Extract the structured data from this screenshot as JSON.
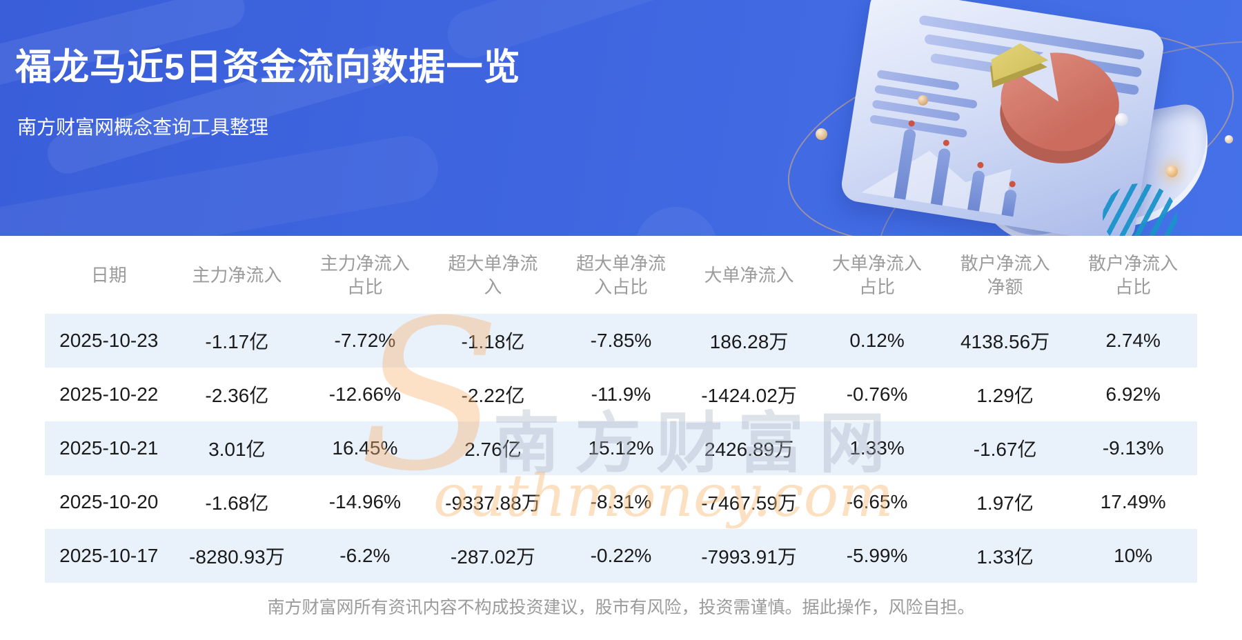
{
  "banner": {
    "title": "福龙马近5日资金流向数据一览",
    "subtitle": "南方财富网概念查询工具整理"
  },
  "watermark": {
    "initial": "S",
    "brand_cn": "南方财富网",
    "brand_en_rest": "outhmoney.com"
  },
  "footer": {
    "disclaimer": "南方财富网所有资讯内容不构成投资建议，股市有风险，投资需谨慎。据此操作，风险自担。"
  },
  "colors": {
    "banner_blue_start": "#3a5ed9",
    "banner_blue_end": "#4571e8",
    "row_alt_blue": "#e9f1fb",
    "header_text_gray": "#9b9b9b",
    "body_text": "#1a1a1a",
    "orbit_orange": "#ebb26e",
    "pie_red": "#cb6c5f",
    "pie_yellow": "#d9c964",
    "teal_accent": "#29b0e2"
  },
  "table": {
    "header_lines": [
      [
        "日期"
      ],
      [
        "主力净流入"
      ],
      [
        "主力净流入",
        "占比"
      ],
      [
        "超大单净流",
        "入"
      ],
      [
        "超大单净流",
        "入占比"
      ],
      [
        "大单净流入"
      ],
      [
        "大单净流入",
        "占比"
      ],
      [
        "散户净流入",
        "净额"
      ],
      [
        "散户净流入",
        "占比"
      ]
    ]
  },
  "chart_data": {
    "type": "table",
    "title": "福龙马近5日资金流向数据一览",
    "columns": [
      "日期",
      "主力净流入",
      "主力净流入占比",
      "超大单净流入",
      "超大单净流入占比",
      "大单净流入",
      "大单净流入占比",
      "散户净流入净额",
      "散户净流入占比"
    ],
    "rows": [
      [
        "2025-10-23",
        "-1.17亿",
        "-7.72%",
        "-1.18亿",
        "-7.85%",
        "186.28万",
        "0.12%",
        "4138.56万",
        "2.74%"
      ],
      [
        "2025-10-22",
        "-2.36亿",
        "-12.66%",
        "-2.22亿",
        "-11.9%",
        "-1424.02万",
        "-0.76%",
        "1.29亿",
        "6.92%"
      ],
      [
        "2025-10-21",
        "3.01亿",
        "16.45%",
        "2.76亿",
        "15.12%",
        "2426.89万",
        "1.33%",
        "-1.67亿",
        "-9.13%"
      ],
      [
        "2025-10-20",
        "-1.68亿",
        "-14.96%",
        "-9337.88万",
        "-8.31%",
        "-7467.59万",
        "-6.65%",
        "1.97亿",
        "17.49%"
      ],
      [
        "2025-10-17",
        "-8280.93万",
        "-6.2%",
        "-287.02万",
        "-0.22%",
        "-7993.91万",
        "-5.99%",
        "1.33亿",
        "10%"
      ]
    ]
  }
}
